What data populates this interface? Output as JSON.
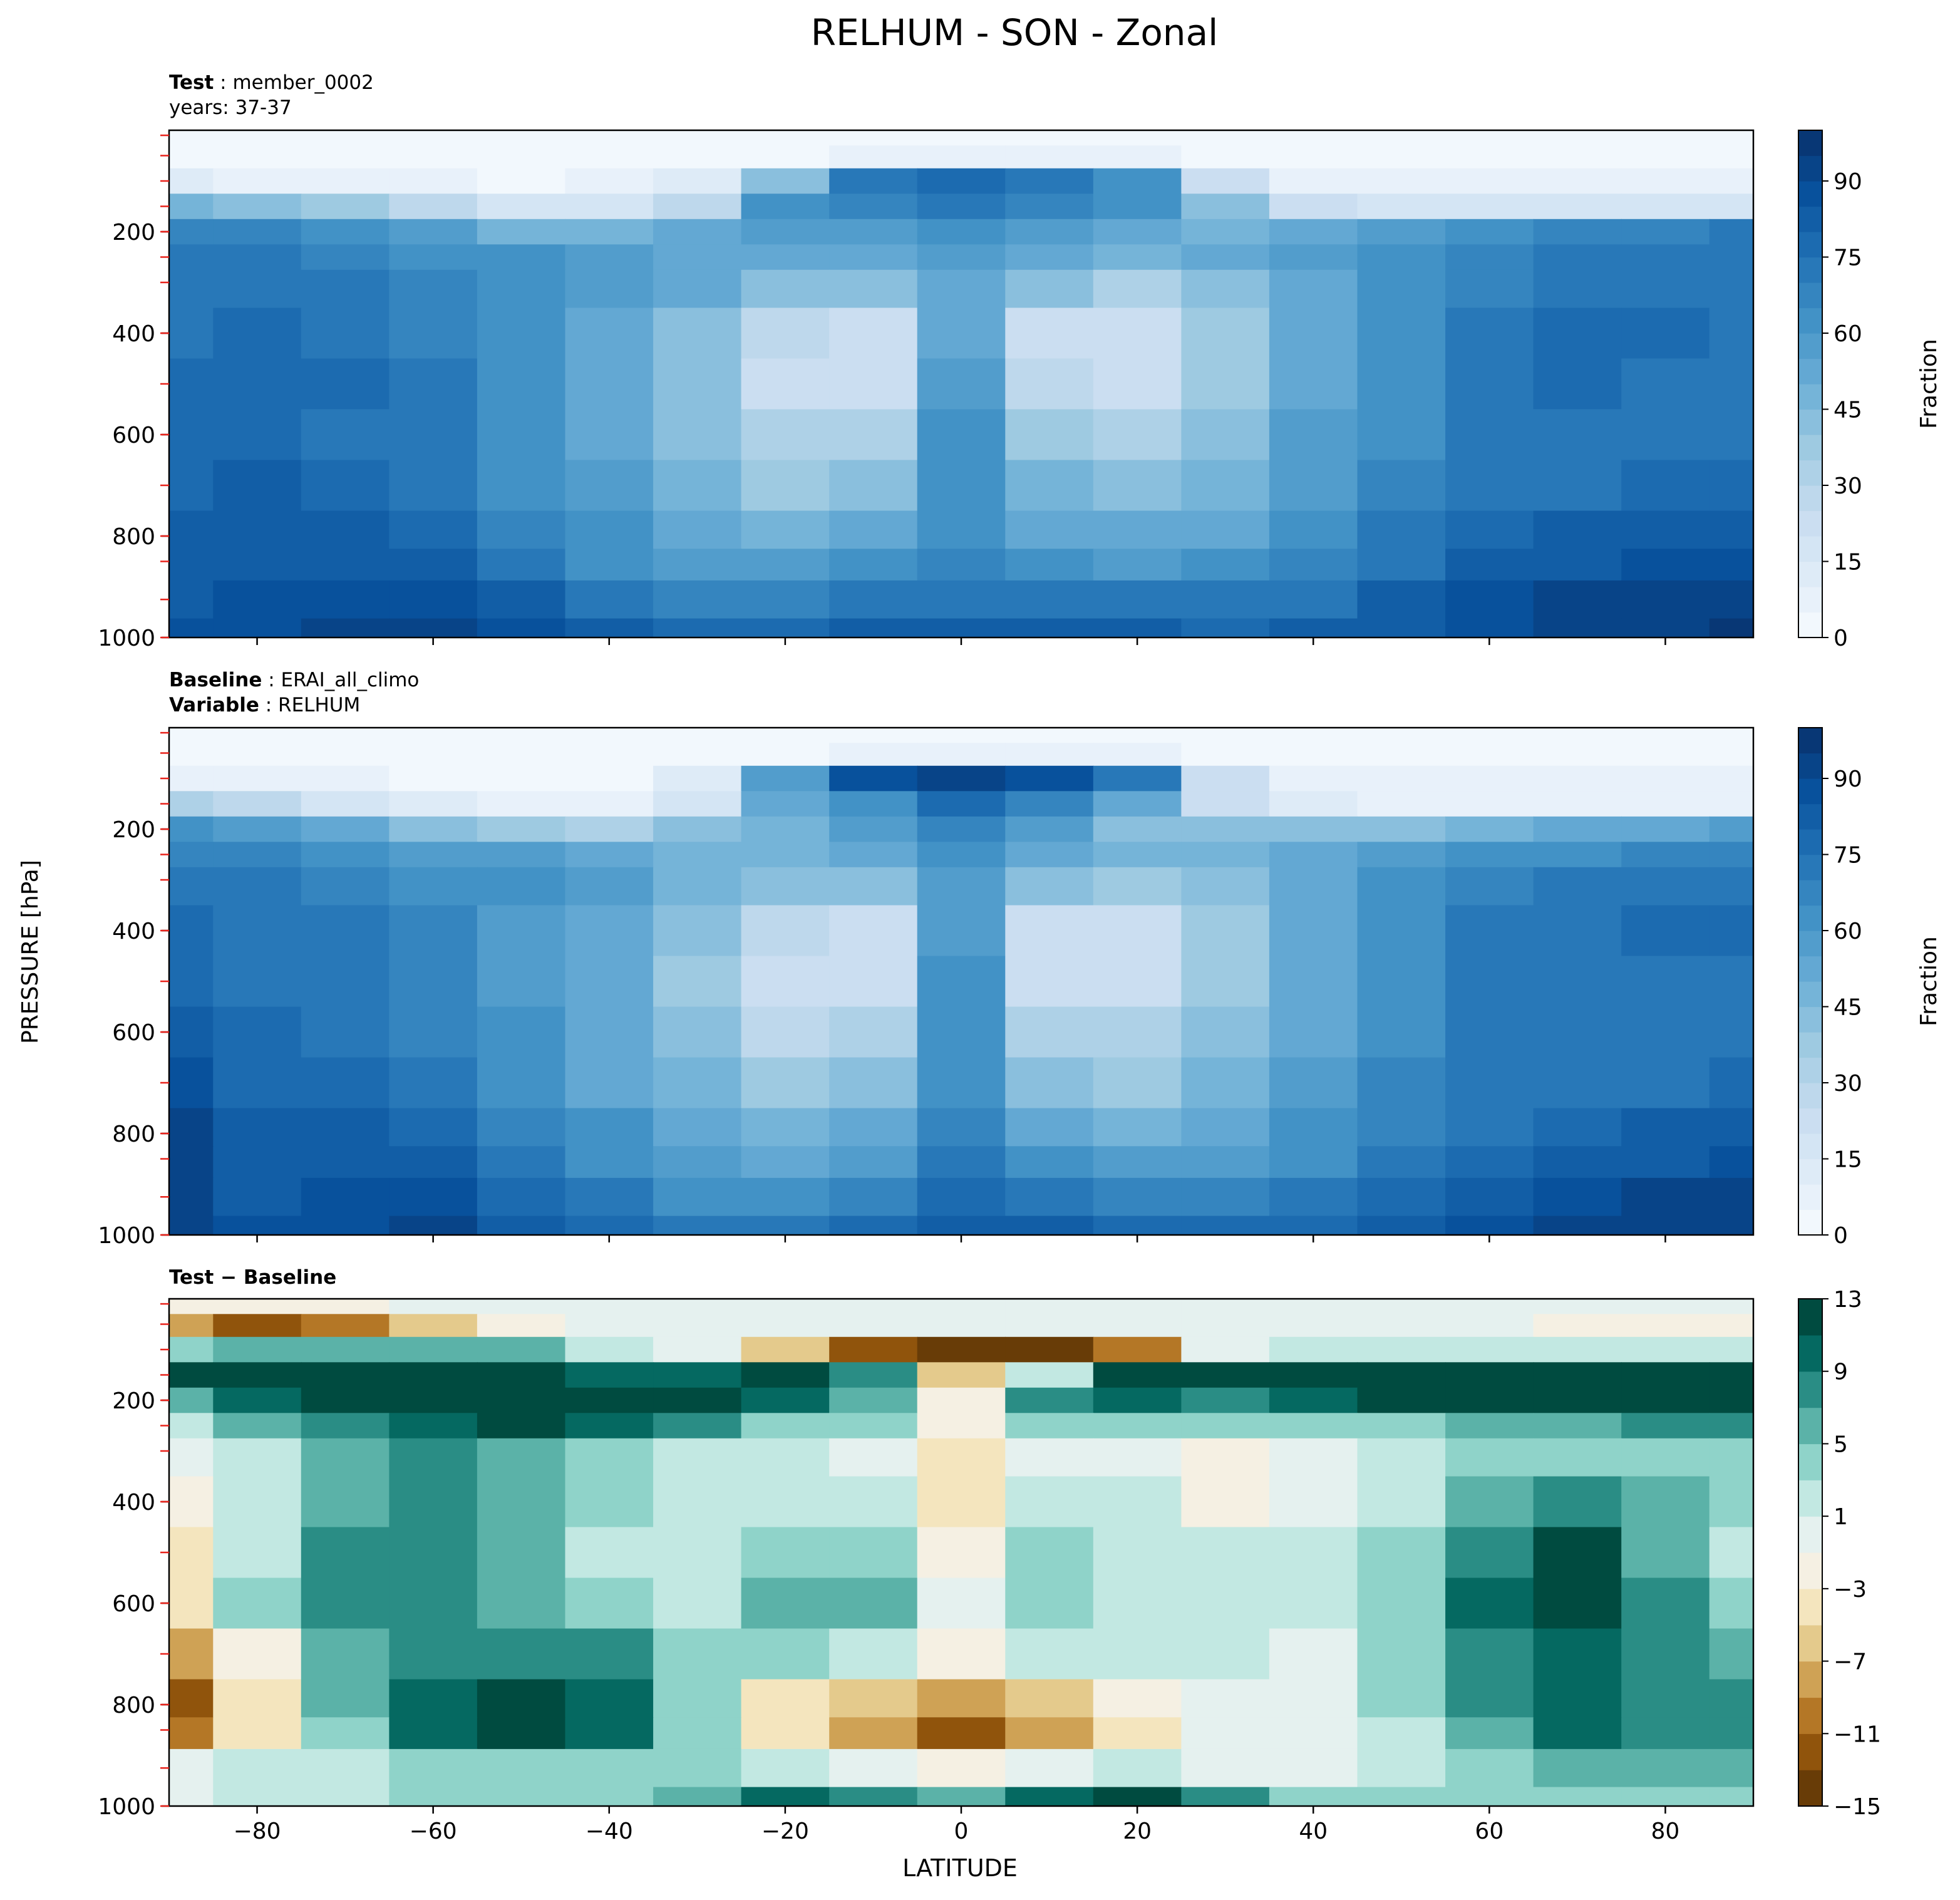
{
  "figure": {
    "title": "RELHUM - SON - Zonal",
    "xlabel": "LATITUDE",
    "ylabel": "PRESSURE [hPa]"
  },
  "panels": [
    {
      "id": "test",
      "label_lines": [
        {
          "bold": "Test",
          "sep": " : ",
          "text": "member_0002"
        },
        {
          "bold": "",
          "sep": "",
          "text": "years: 37-37"
        }
      ],
      "colorbar": {
        "label": "Fraction",
        "ticks": [
          "0",
          "15",
          "30",
          "45",
          "60",
          "75",
          "90"
        ]
      }
    },
    {
      "id": "baseline",
      "label_lines": [
        {
          "bold": "Baseline",
          "sep": " : ",
          "text": "ERAI_all_climo"
        },
        {
          "bold": "Variable",
          "sep": " : ",
          "text": "RELHUM"
        }
      ],
      "colorbar": {
        "label": "Fraction",
        "ticks": [
          "0",
          "15",
          "30",
          "45",
          "60",
          "75",
          "90"
        ]
      }
    },
    {
      "id": "diff",
      "label_lines": [
        {
          "bold": "Test − Baseline",
          "sep": "",
          "text": ""
        }
      ],
      "colorbar": {
        "label": "",
        "ticks": [
          "−15",
          "−11",
          "−7",
          "−3",
          "1",
          "5",
          "9",
          "13"
        ]
      }
    }
  ],
  "chart_data": {
    "type": "heatmap",
    "x": [
      -90,
      -80,
      -70,
      -60,
      -50,
      -40,
      -30,
      -20,
      -10,
      0,
      10,
      20,
      30,
      40,
      50,
      60,
      70,
      80,
      90
    ],
    "y": [
      10,
      50,
      100,
      150,
      200,
      250,
      300,
      400,
      500,
      600,
      700,
      800,
      850,
      925,
      1000
    ],
    "xlim": [
      -90,
      90
    ],
    "ylim": [
      1000,
      0
    ],
    "xticks": [
      "−80",
      "−60",
      "−40",
      "−20",
      "0",
      "20",
      "40",
      "60",
      "80"
    ],
    "yticks": [
      "200",
      "400",
      "600",
      "800",
      "1000"
    ],
    "series": [
      {
        "name": "Test",
        "clim": [
          0,
          100
        ],
        "z": [
          [
            0,
            0,
            0,
            0,
            0,
            0,
            0,
            1,
            1,
            1,
            1,
            1,
            0,
            0,
            0,
            0,
            0,
            0,
            0
          ],
          [
            2,
            2,
            2,
            1,
            1,
            1,
            2,
            4,
            6,
            6,
            6,
            5,
            3,
            1,
            1,
            1,
            1,
            1,
            1
          ],
          [
            10,
            9,
            7,
            5,
            4,
            5,
            10,
            40,
            72,
            76,
            74,
            60,
            20,
            8,
            5,
            5,
            5,
            5,
            5
          ],
          [
            45,
            42,
            35,
            25,
            18,
            15,
            28,
            60,
            66,
            70,
            68,
            62,
            40,
            22,
            15,
            15,
            15,
            15,
            15
          ],
          [
            65,
            68,
            62,
            55,
            48,
            45,
            50,
            55,
            58,
            62,
            58,
            52,
            48,
            50,
            55,
            60,
            65,
            68,
            70
          ],
          [
            70,
            72,
            68,
            64,
            60,
            56,
            52,
            50,
            52,
            56,
            52,
            48,
            50,
            56,
            62,
            66,
            70,
            72,
            74
          ],
          [
            72,
            74,
            72,
            66,
            62,
            58,
            50,
            40,
            40,
            52,
            40,
            34,
            44,
            54,
            62,
            68,
            72,
            74,
            74
          ],
          [
            74,
            76,
            74,
            68,
            60,
            54,
            42,
            26,
            22,
            54,
            22,
            22,
            38,
            52,
            62,
            70,
            76,
            76,
            74
          ],
          [
            75,
            77,
            75,
            70,
            62,
            52,
            40,
            24,
            24,
            56,
            26,
            24,
            38,
            54,
            64,
            70,
            76,
            74,
            72
          ],
          [
            76,
            78,
            74,
            70,
            62,
            54,
            42,
            30,
            34,
            60,
            38,
            32,
            42,
            56,
            64,
            70,
            72,
            72,
            72
          ],
          [
            78,
            80,
            76,
            72,
            64,
            56,
            46,
            38,
            44,
            62,
            46,
            40,
            48,
            58,
            66,
            72,
            74,
            76,
            78
          ],
          [
            80,
            82,
            80,
            76,
            68,
            60,
            52,
            48,
            52,
            64,
            54,
            50,
            54,
            62,
            70,
            76,
            80,
            82,
            84
          ],
          [
            82,
            84,
            82,
            80,
            72,
            64,
            58,
            56,
            60,
            68,
            62,
            58,
            60,
            66,
            74,
            80,
            84,
            86,
            88
          ],
          [
            84,
            86,
            88,
            88,
            80,
            72,
            66,
            66,
            70,
            74,
            72,
            70,
            70,
            72,
            80,
            86,
            90,
            92,
            94
          ],
          [
            86,
            88,
            90,
            92,
            86,
            80,
            76,
            76,
            80,
            84,
            82,
            80,
            78,
            80,
            84,
            88,
            92,
            94,
            96
          ]
        ]
      },
      {
        "name": "Baseline",
        "clim": [
          0,
          100
        ],
        "z": [
          [
            0,
            0,
            0,
            0,
            0,
            0,
            0,
            1,
            1,
            1,
            1,
            1,
            0,
            0,
            0,
            0,
            0,
            0,
            0
          ],
          [
            2,
            2,
            2,
            1,
            1,
            1,
            2,
            4,
            6,
            6,
            6,
            5,
            3,
            1,
            1,
            1,
            1,
            1,
            1
          ],
          [
            8,
            7,
            5,
            4,
            3,
            4,
            10,
            55,
            86,
            90,
            88,
            70,
            20,
            8,
            5,
            5,
            5,
            5,
            5
          ],
          [
            30,
            25,
            18,
            12,
            8,
            6,
            18,
            50,
            62,
            78,
            66,
            50,
            22,
            10,
            8,
            8,
            8,
            8,
            8
          ],
          [
            60,
            58,
            50,
            42,
            36,
            34,
            40,
            48,
            56,
            68,
            56,
            44,
            40,
            40,
            42,
            46,
            50,
            54,
            56
          ],
          [
            68,
            66,
            62,
            58,
            56,
            54,
            48,
            48,
            52,
            60,
            52,
            46,
            48,
            54,
            58,
            62,
            64,
            66,
            68
          ],
          [
            72,
            70,
            68,
            64,
            60,
            56,
            48,
            40,
            42,
            56,
            40,
            36,
            44,
            54,
            60,
            66,
            70,
            72,
            72
          ],
          [
            76,
            72,
            70,
            66,
            58,
            50,
            40,
            26,
            20,
            58,
            22,
            20,
            36,
            52,
            62,
            70,
            74,
            76,
            76
          ],
          [
            78,
            74,
            72,
            66,
            58,
            50,
            38,
            22,
            22,
            60,
            24,
            22,
            36,
            52,
            64,
            70,
            74,
            74,
            74
          ],
          [
            80,
            76,
            74,
            68,
            60,
            52,
            42,
            28,
            32,
            62,
            34,
            30,
            40,
            54,
            64,
            70,
            72,
            72,
            72
          ],
          [
            86,
            78,
            76,
            70,
            62,
            54,
            46,
            36,
            42,
            64,
            44,
            38,
            46,
            56,
            66,
            70,
            72,
            74,
            76
          ],
          [
            90,
            80,
            80,
            76,
            66,
            60,
            52,
            46,
            52,
            68,
            54,
            48,
            52,
            60,
            68,
            74,
            78,
            80,
            82
          ],
          [
            90,
            82,
            82,
            80,
            70,
            62,
            56,
            54,
            58,
            72,
            60,
            56,
            58,
            64,
            72,
            78,
            82,
            84,
            86
          ],
          [
            90,
            84,
            86,
            86,
            78,
            70,
            64,
            64,
            68,
            78,
            70,
            68,
            68,
            70,
            78,
            84,
            88,
            90,
            92
          ],
          [
            90,
            86,
            88,
            90,
            84,
            78,
            74,
            74,
            78,
            84,
            80,
            78,
            76,
            78,
            82,
            86,
            90,
            92,
            94
          ]
        ]
      },
      {
        "name": "Test − Baseline",
        "clim": [
          -15,
          13
        ],
        "z": [
          [
            -2,
            -3,
            -2,
            -1,
            -1,
            0,
            0,
            0,
            0,
            0,
            0,
            0,
            0,
            0,
            0,
            0,
            -1,
            -1,
            -1
          ],
          [
            -8,
            -12,
            -10,
            -6,
            -2,
            0,
            0,
            -1,
            -1,
            -1,
            -1,
            0,
            0,
            0,
            0,
            0,
            -2,
            -2,
            -2
          ],
          [
            4,
            5,
            6,
            6,
            5,
            2,
            0,
            -7,
            -12,
            -14,
            -14,
            -10,
            0,
            2,
            2,
            2,
            2,
            2,
            2
          ],
          [
            12,
            13,
            14,
            14,
            14,
            10,
            10,
            14,
            8,
            -6,
            2,
            12,
            14,
            14,
            14,
            14,
            14,
            14,
            14
          ],
          [
            5,
            10,
            12,
            12,
            12,
            12,
            12,
            10,
            6,
            -2,
            8,
            10,
            8,
            10,
            14,
            14,
            14,
            14,
            14
          ],
          [
            2,
            6,
            8,
            10,
            12,
            10,
            8,
            4,
            4,
            -2,
            4,
            4,
            4,
            4,
            4,
            6,
            6,
            8,
            8
          ],
          [
            0,
            2,
            6,
            8,
            6,
            4,
            2,
            2,
            0,
            -4,
            0,
            0,
            -2,
            0,
            2,
            4,
            4,
            4,
            4
          ],
          [
            -2,
            2,
            6,
            8,
            6,
            4,
            2,
            2,
            2,
            -4,
            2,
            2,
            -3,
            0,
            2,
            6,
            8,
            6,
            4
          ],
          [
            -4,
            2,
            8,
            8,
            6,
            2,
            2,
            4,
            4,
            -2,
            4,
            2,
            2,
            2,
            4,
            8,
            12,
            6,
            2
          ],
          [
            -4,
            4,
            8,
            8,
            6,
            4,
            2,
            6,
            6,
            -1,
            4,
            2,
            2,
            2,
            4,
            10,
            12,
            8,
            4
          ],
          [
            -8,
            -2,
            6,
            8,
            8,
            8,
            4,
            4,
            2,
            -2,
            2,
            2,
            2,
            0,
            4,
            8,
            10,
            8,
            6
          ],
          [
            -12,
            -4,
            6,
            10,
            12,
            10,
            4,
            -4,
            -6,
            -8,
            -6,
            -2,
            0,
            0,
            4,
            8,
            10,
            8,
            8
          ],
          [
            -10,
            -4,
            4,
            10,
            12,
            10,
            4,
            -4,
            -8,
            -12,
            -8,
            -4,
            0,
            0,
            2,
            6,
            10,
            8,
            8
          ],
          [
            0,
            2,
            2,
            4,
            4,
            4,
            4,
            2,
            0,
            -2,
            0,
            2,
            0,
            0,
            2,
            4,
            6,
            6,
            6
          ],
          [
            0,
            2,
            2,
            4,
            4,
            4,
            6,
            10,
            8,
            6,
            10,
            12,
            8,
            4,
            4,
            4,
            4,
            4,
            4
          ]
        ]
      }
    ]
  }
}
